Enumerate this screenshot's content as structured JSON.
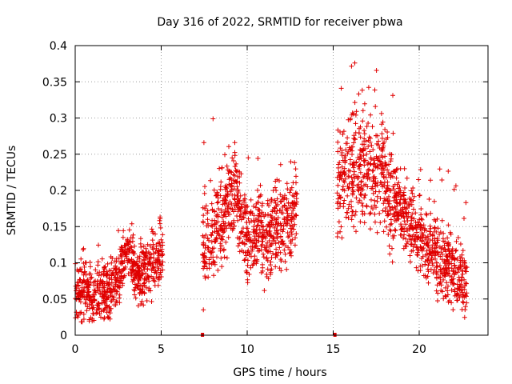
{
  "chart_data": {
    "type": "scatter",
    "title": "Day 316 of 2022, SRMTID for receiver pbwa",
    "xlabel": "GPS time / hours",
    "ylabel": "SRMTID / TECUs",
    "xlim": [
      0,
      24
    ],
    "ylim": [
      0,
      0.4
    ],
    "xticks": [
      0,
      5,
      10,
      15,
      20
    ],
    "xtick_labels": [
      "0",
      "5",
      "10",
      "15",
      "20"
    ],
    "yticks": [
      0,
      0.05,
      0.1,
      0.15,
      0.2,
      0.25,
      0.3,
      0.35,
      0.4
    ],
    "ytick_labels": [
      "0",
      "0.05",
      "0.1",
      "0.15",
      "0.2",
      "0.25",
      "0.3",
      "0.35",
      "0.4"
    ],
    "grid": true,
    "marker": "plus",
    "color": "#e00000",
    "gap_markers_x": [
      7.4,
      15.1
    ],
    "series": [
      {
        "name": "SRMTID",
        "segments": [
          {
            "x_start": 0.0,
            "x_end": 2.6,
            "profile": [
              [
                0.0,
                0.055
              ],
              [
                0.5,
                0.07
              ],
              [
                1.0,
                0.055
              ],
              [
                1.5,
                0.06
              ],
              [
                2.0,
                0.065
              ],
              [
                2.6,
                0.075
              ]
            ],
            "spread": 0.025,
            "peak_max": 0.145
          },
          {
            "x_start": 2.6,
            "x_end": 3.4,
            "profile": [
              [
                2.6,
                0.09
              ],
              [
                3.0,
                0.12
              ],
              [
                3.4,
                0.1
              ]
            ],
            "spread": 0.025,
            "peak_max": 0.155
          },
          {
            "x_start": 3.4,
            "x_end": 5.1,
            "profile": [
              [
                3.4,
                0.085
              ],
              [
                4.0,
                0.09
              ],
              [
                4.5,
                0.1
              ],
              [
                5.1,
                0.105
              ]
            ],
            "spread": 0.025,
            "peak_max": 0.165
          },
          {
            "x_start": 7.4,
            "x_end": 10.0,
            "profile": [
              [
                7.4,
                0.12
              ],
              [
                8.0,
                0.14
              ],
              [
                8.7,
                0.17
              ],
              [
                9.3,
                0.2
              ],
              [
                10.0,
                0.13
              ]
            ],
            "spread": 0.04,
            "peak_max": 0.31
          },
          {
            "x_start": 10.0,
            "x_end": 12.9,
            "profile": [
              [
                10.0,
                0.13
              ],
              [
                10.8,
                0.14
              ],
              [
                11.5,
                0.14
              ],
              [
                12.3,
                0.16
              ],
              [
                12.9,
                0.18
              ]
            ],
            "spread": 0.035,
            "peak_max": 0.255
          },
          {
            "x_start": 15.2,
            "x_end": 18.5,
            "profile": [
              [
                15.2,
                0.2
              ],
              [
                15.8,
                0.22
              ],
              [
                16.5,
                0.24
              ],
              [
                17.2,
                0.23
              ],
              [
                17.8,
                0.22
              ],
              [
                18.5,
                0.19
              ]
            ],
            "spread": 0.05,
            "peak_max": 0.38
          },
          {
            "x_start": 18.5,
            "x_end": 22.8,
            "profile": [
              [
                18.5,
                0.19
              ],
              [
                19.5,
                0.15
              ],
              [
                20.5,
                0.12
              ],
              [
                21.5,
                0.1
              ],
              [
                22.8,
                0.07
              ]
            ],
            "spread": 0.03,
            "peak_max": 0.23
          }
        ]
      }
    ]
  }
}
